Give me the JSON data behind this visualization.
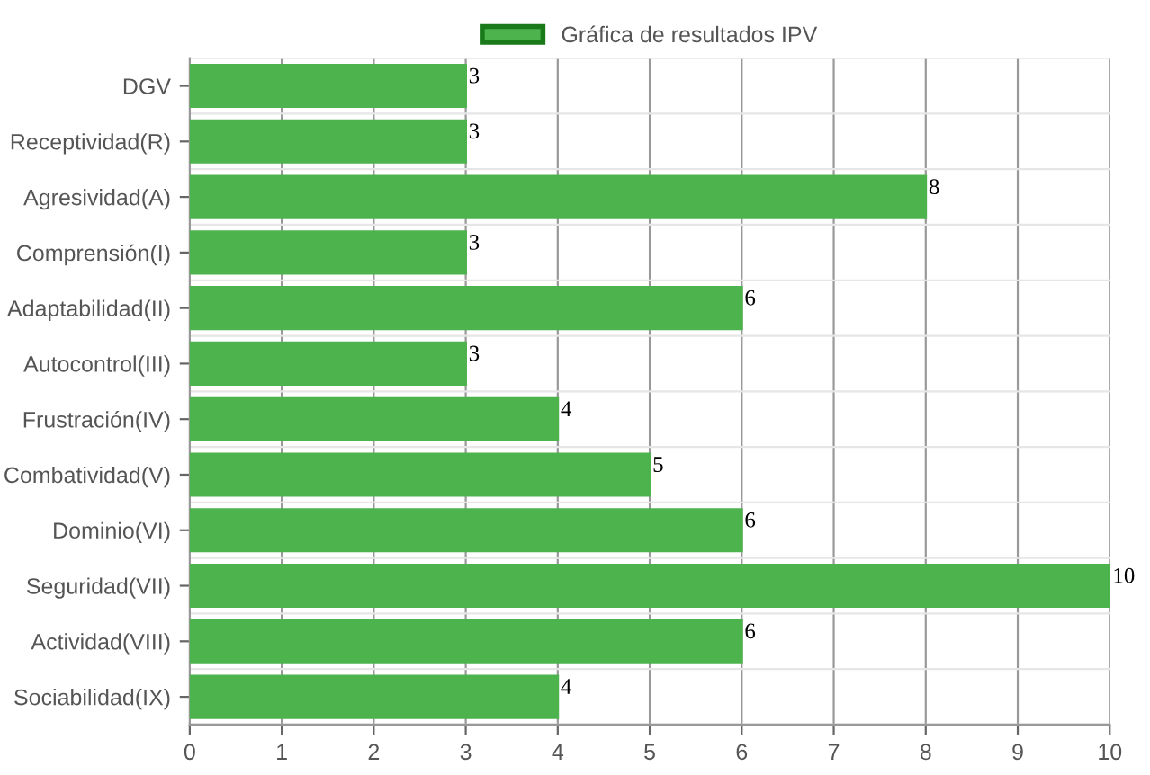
{
  "chart_data": {
    "type": "bar",
    "orientation": "horizontal",
    "categories": [
      "DGV",
      "Receptividad(R)",
      "Agresividad(A)",
      "Comprensión(I)",
      "Adaptabilidad(II)",
      "Autocontrol(III)",
      "Frustración(IV)",
      "Combatividad(V)",
      "Dominio(VI)",
      "Seguridad(VII)",
      "Actividad(VIII)",
      "Sociabilidad(IX)"
    ],
    "series": [
      {
        "name": "Gráfica de resultados IPV",
        "color": "#4db34d",
        "values": [
          3,
          3,
          8,
          3,
          6,
          3,
          4,
          5,
          6,
          10,
          6,
          4
        ]
      }
    ],
    "xlim": [
      0,
      10
    ],
    "xticks": [
      0,
      1,
      2,
      3,
      4,
      5,
      6,
      7,
      8,
      9,
      10
    ],
    "grid": true,
    "legend": "top",
    "data_labels": true
  }
}
